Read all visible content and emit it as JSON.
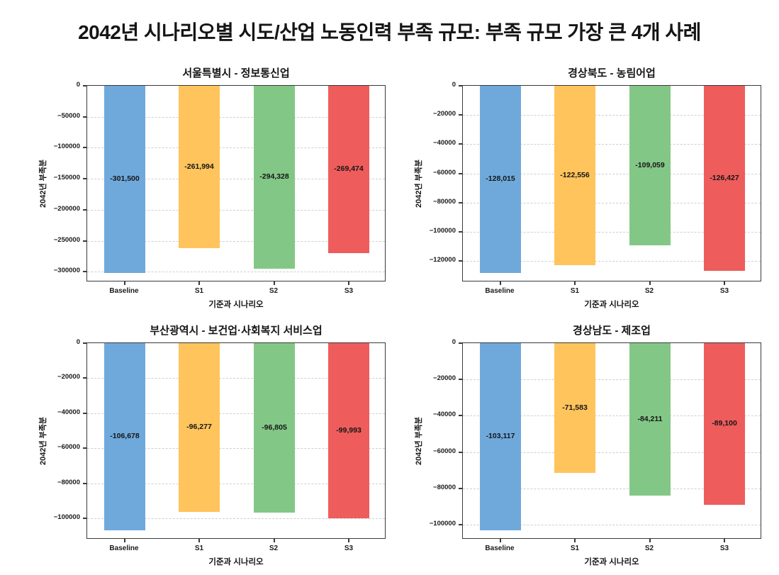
{
  "page": {
    "title": "2042년 시나리오별 시도/산업 노동인력 부족 규모: 부족 규모 가장 큰 4개 사례"
  },
  "colors": {
    "baseline": "#6FA9DC",
    "s1": "#FFC45C",
    "s2": "#83C786",
    "s3": "#EE5C5C",
    "grid": "#cfcfcf",
    "frame": "#3a3a3a",
    "text": "#151515"
  },
  "chart_data": [
    {
      "type": "bar",
      "title": "서울특별시 - 정보통신업",
      "categories": [
        "Baseline",
        "S1",
        "S2",
        "S3"
      ],
      "values": [
        -301500,
        -261994,
        -294328,
        -269474
      ],
      "value_labels": [
        "-301,500",
        "-261,994",
        "-294,328",
        "-269,474"
      ],
      "bar_colors": [
        "#6FA9DC",
        "#FFC45C",
        "#83C786",
        "#EE5C5C"
      ],
      "xlabel": "기준과 시나리오",
      "ylabel": "2042년 부족분",
      "ylim": [
        -316575,
        0
      ],
      "yticks": [
        0,
        -50000,
        -100000,
        -150000,
        -200000,
        -250000,
        -300000
      ],
      "yticklabels": [
        "0",
        "−50000",
        "−100000",
        "−150000",
        "−200000",
        "−250000",
        "−300000"
      ],
      "grid": true,
      "legend": "none"
    },
    {
      "type": "bar",
      "title": "경상북도 - 농림어업",
      "categories": [
        "Baseline",
        "S1",
        "S2",
        "S3"
      ],
      "values": [
        -128015,
        -122556,
        -109059,
        -126427
      ],
      "value_labels": [
        "-128,015",
        "-122,556",
        "-109,059",
        "-126,427"
      ],
      "bar_colors": [
        "#6FA9DC",
        "#FFC45C",
        "#83C786",
        "#EE5C5C"
      ],
      "xlabel": "기준과 시나리오",
      "ylabel": "2042년 부족분",
      "ylim": [
        -134416,
        0
      ],
      "yticks": [
        0,
        -20000,
        -40000,
        -60000,
        -80000,
        -100000,
        -120000
      ],
      "yticklabels": [
        "0",
        "−20000",
        "−40000",
        "−60000",
        "−80000",
        "−100000",
        "−120000"
      ],
      "grid": true,
      "legend": "none"
    },
    {
      "type": "bar",
      "title": "부산광역시 - 보건업·사회복지 서비스업",
      "categories": [
        "Baseline",
        "S1",
        "S2",
        "S3"
      ],
      "values": [
        -106678,
        -96277,
        -96805,
        -99993
      ],
      "value_labels": [
        "-106,678",
        "-96,277",
        "-96,805",
        "-99,993"
      ],
      "bar_colors": [
        "#6FA9DC",
        "#FFC45C",
        "#83C786",
        "#EE5C5C"
      ],
      "xlabel": "기준과 시나리오",
      "ylabel": "2042년 부족분",
      "ylim": [
        -112012,
        0
      ],
      "yticks": [
        0,
        -20000,
        -40000,
        -60000,
        -80000,
        -100000
      ],
      "yticklabels": [
        "0",
        "−20000",
        "−40000",
        "−60000",
        "−80000",
        "−100000"
      ],
      "grid": true,
      "legend": "none"
    },
    {
      "type": "bar",
      "title": "경상남도 - 제조업",
      "categories": [
        "Baseline",
        "S1",
        "S2",
        "S3"
      ],
      "values": [
        -103117,
        -71583,
        -84211,
        -89100
      ],
      "value_labels": [
        "-103,117",
        "-71,583",
        "-84,211",
        "-89,100"
      ],
      "bar_colors": [
        "#6FA9DC",
        "#FFC45C",
        "#83C786",
        "#EE5C5C"
      ],
      "xlabel": "기준과 시나리오",
      "ylabel": "2042년 부족분",
      "ylim": [
        -108273,
        0
      ],
      "yticks": [
        0,
        -20000,
        -40000,
        -60000,
        -80000,
        -100000
      ],
      "yticklabels": [
        "0",
        "−20000",
        "−40000",
        "−60000",
        "−80000",
        "−100000"
      ],
      "grid": true,
      "legend": "none"
    }
  ]
}
